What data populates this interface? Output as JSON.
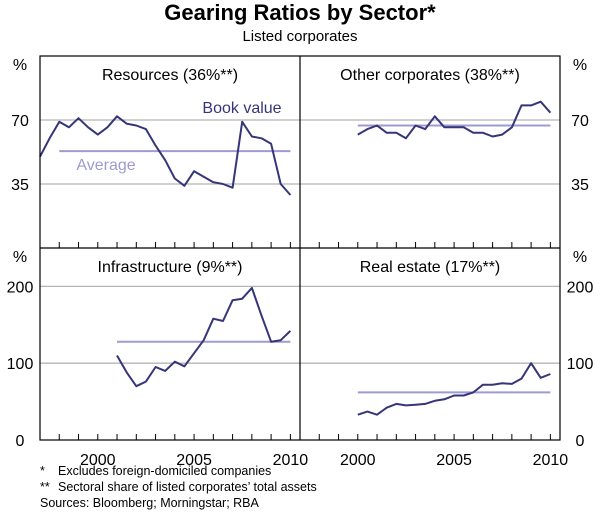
{
  "title": "Gearing Ratios by Sector*",
  "subtitle": "Listed corporates",
  "notes": [
    {
      "symbol": "*",
      "text": "Excludes foreign-domiciled companies"
    },
    {
      "symbol": "**",
      "text": "Sectoral share of listed corporates’ total assets"
    }
  ],
  "sources": "Sources: Bloomberg; Morningstar; RBA",
  "colors": {
    "book_value": "#35357a",
    "average": "#9e9ad2",
    "grid": "#b4b4b4",
    "axis": "#000000"
  },
  "chart_data": {
    "type": "line",
    "x_range": [
      1997,
      2010.5
    ],
    "x_ticks": [
      2000,
      2005,
      2010
    ],
    "unit_label": "%",
    "panels": [
      {
        "id": "resources",
        "title": "Resources (36%**)",
        "y_range": [
          0,
          105
        ],
        "y_ticks": [
          35,
          70
        ],
        "annotations": {
          "series": "Book value",
          "average": "Average"
        },
        "book_value": {
          "x": [
            1997.0,
            1997.5,
            1998.0,
            1998.5,
            1999.0,
            1999.5,
            2000.0,
            2000.5,
            2001.0,
            2001.5,
            2002.0,
            2002.5,
            2003.0,
            2003.5,
            2004.0,
            2004.5,
            2005.0,
            2005.5,
            2006.0,
            2006.5,
            2007.0,
            2007.5,
            2008.0,
            2008.5,
            2009.0,
            2009.5,
            2010.0
          ],
          "y": [
            50,
            60,
            69,
            66,
            71,
            66,
            62,
            66,
            72,
            68,
            67,
            65,
            56,
            48,
            38,
            34,
            42,
            39,
            36,
            35,
            33,
            69,
            61,
            60,
            57,
            35,
            29
          ]
        },
        "average": 53
      },
      {
        "id": "other-corporates",
        "title": "Other corporates (38%**)",
        "y_range": [
          0,
          105
        ],
        "y_ticks": [
          35,
          70
        ],
        "book_value": {
          "x": [
            2000.0,
            2000.5,
            2001.0,
            2001.5,
            2002.0,
            2002.5,
            2003.0,
            2003.5,
            2004.0,
            2004.5,
            2005.0,
            2005.5,
            2006.0,
            2006.5,
            2007.0,
            2007.5,
            2008.0,
            2008.5,
            2009.0,
            2009.5,
            2010.0
          ],
          "y": [
            62,
            65,
            67,
            63,
            63,
            60,
            67,
            65,
            72,
            66,
            66,
            66,
            63,
            63,
            61,
            62,
            66,
            78,
            78,
            80,
            74
          ]
        },
        "average": 67
      },
      {
        "id": "infrastructure",
        "title": "Infrastructure (9%**)",
        "y_range": [
          0,
          250
        ],
        "y_ticks": [
          0,
          100,
          200
        ],
        "book_value": {
          "x": [
            2001.0,
            2001.5,
            2002.0,
            2002.5,
            2003.0,
            2003.5,
            2004.0,
            2004.5,
            2005.0,
            2005.5,
            2006.0,
            2006.5,
            2007.0,
            2007.5,
            2008.0,
            2008.5,
            2009.0,
            2009.5,
            2010.0
          ],
          "y": [
            110,
            88,
            70,
            76,
            95,
            90,
            102,
            96,
            113,
            130,
            158,
            155,
            182,
            184,
            198,
            162,
            128,
            130,
            142
          ]
        },
        "average": 128
      },
      {
        "id": "real-estate",
        "title": "Real estate (17%**)",
        "y_range": [
          0,
          250
        ],
        "y_ticks": [
          0,
          100,
          200
        ],
        "book_value": {
          "x": [
            2000.0,
            2000.5,
            2001.0,
            2001.5,
            2002.0,
            2002.5,
            2003.0,
            2003.5,
            2004.0,
            2004.5,
            2005.0,
            2005.5,
            2006.0,
            2006.5,
            2007.0,
            2007.5,
            2008.0,
            2008.5,
            2009.0,
            2009.5,
            2010.0
          ],
          "y": [
            33,
            37,
            33,
            42,
            47,
            45,
            46,
            47,
            51,
            53,
            58,
            58,
            62,
            72,
            72,
            74,
            73,
            80,
            100,
            81,
            86
          ]
        },
        "average": 62
      }
    ]
  }
}
